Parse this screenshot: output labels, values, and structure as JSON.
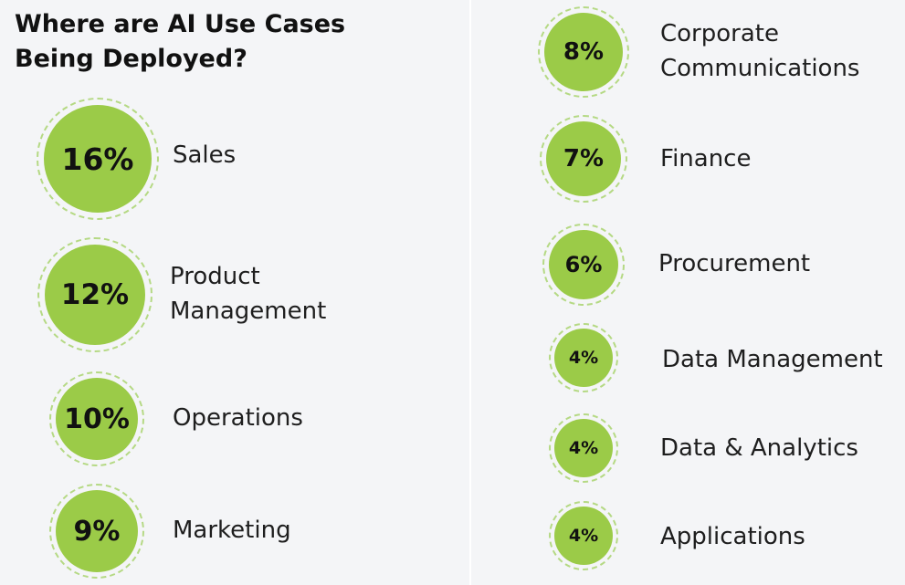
{
  "chart_data": {
    "type": "bubble",
    "title": "Where are AI Use Cases Being Deployed?",
    "unit": "%",
    "colors": {
      "bubble_fill": "#9bcb48",
      "bubble_ring": "#b5d984",
      "background": "#f4f5f7"
    },
    "items": [
      {
        "label": "Sales",
        "value": 16,
        "display": "16%"
      },
      {
        "label": "Product\nManagement",
        "value": 12,
        "display": "12%"
      },
      {
        "label": "Operations",
        "value": 10,
        "display": "10%"
      },
      {
        "label": "Marketing",
        "value": 9,
        "display": "9%"
      },
      {
        "label": "Corporate\nCommunications",
        "value": 8,
        "display": "8%"
      },
      {
        "label": "Finance",
        "value": 7,
        "display": "7%"
      },
      {
        "label": "Procurement",
        "value": 6,
        "display": "6%"
      },
      {
        "label": "Data Management",
        "value": 4,
        "display": "4%"
      },
      {
        "label": "Data & Analytics",
        "value": 4,
        "display": "4%"
      },
      {
        "label": "Applications",
        "value": 4,
        "display": "4%"
      }
    ]
  }
}
